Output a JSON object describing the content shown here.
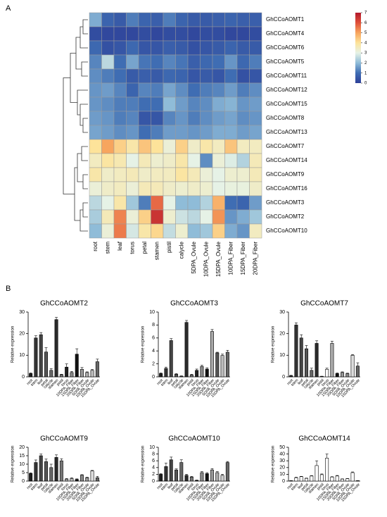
{
  "panel_labels": [
    "A",
    "B"
  ],
  "chart_data": [
    {
      "type": "heatmap",
      "rows": [
        "GhCCoAOMT1",
        "GhCCoAOMT4",
        "GhCCoAOMT6",
        "GhCCoAOMT5",
        "GhCCoAOMT11",
        "GhCCoAOMT12",
        "GhCCoAOMT15",
        "GhCCoAOMT8",
        "GhCCoAOMT13",
        "GhCCoAOMT7",
        "GhCCoAOMT14",
        "GhCCoAOMT9",
        "GhCCoAOMT16",
        "GhCCoAOMT3",
        "GhCCoAOMT2",
        "GhCCoAOMT10"
      ],
      "columns": [
        "root",
        "stem",
        "leaf",
        "torus",
        "petal",
        "stamen",
        "pistil",
        "calycle",
        "5DPA_Ovule",
        "10DPA_Ovule",
        "15DPA_Ovule",
        "10DPA_Fiber",
        "15DPA_Fiber",
        "20DPA_Fiber"
      ],
      "values": [
        [
          1.8,
          0.8,
          0.6,
          1.2,
          0.8,
          0.7,
          1.2,
          0.8,
          0.6,
          0.6,
          0.7,
          0.8,
          0.7,
          0.7
        ],
        [
          0.3,
          0.2,
          0.2,
          0.2,
          0.3,
          0.2,
          0.3,
          0.3,
          0.2,
          0.3,
          0.3,
          0.2,
          0.2,
          0.3
        ],
        [
          0.9,
          0.4,
          0.5,
          0.9,
          0.5,
          0.5,
          0.7,
          0.6,
          0.4,
          0.5,
          0.6,
          0.8,
          0.6,
          0.6
        ],
        [
          1.3,
          2.5,
          1.0,
          1.7,
          1.1,
          1.0,
          1.3,
          1.1,
          0.7,
          0.9,
          1.0,
          1.5,
          0.9,
          1.2
        ],
        [
          1.4,
          1.2,
          1.0,
          0.6,
          0.7,
          0.6,
          0.9,
          0.8,
          0.5,
          0.6,
          0.5,
          1.0,
          0.4,
          0.5
        ],
        [
          1.5,
          1.6,
          1.3,
          0.8,
          1.3,
          1.2,
          1.7,
          1.4,
          1.0,
          1.2,
          1.3,
          1.6,
          1.2,
          1.4
        ],
        [
          1.5,
          1.4,
          1.2,
          1.2,
          1.0,
          1.0,
          2.0,
          1.6,
          1.3,
          1.4,
          1.8,
          1.9,
          1.5,
          1.6
        ],
        [
          1.6,
          1.5,
          1.2,
          1.3,
          0.5,
          0.5,
          1.3,
          1.5,
          1.2,
          1.4,
          1.6,
          1.7,
          1.4,
          1.5
        ],
        [
          1.7,
          1.6,
          1.4,
          1.5,
          1.0,
          1.2,
          1.6,
          1.6,
          1.5,
          1.6,
          1.8,
          1.8,
          1.6,
          1.7
        ],
        [
          4.0,
          5.0,
          4.3,
          3.8,
          4.5,
          4.0,
          3.2,
          4.3,
          3.4,
          3.8,
          3.5,
          4.5,
          3.5,
          3.5
        ],
        [
          3.5,
          3.9,
          3.7,
          3.0,
          3.6,
          3.3,
          3.4,
          3.8,
          3.0,
          1.4,
          3.2,
          2.9,
          2.4,
          3.6
        ],
        [
          3.8,
          3.4,
          3.5,
          3.6,
          3.4,
          3.5,
          3.5,
          3.9,
          3.6,
          3.2,
          3.0,
          3.3,
          3.3,
          3.6
        ],
        [
          3.2,
          3.4,
          3.5,
          3.2,
          3.6,
          3.6,
          3.4,
          3.3,
          3.4,
          3.3,
          3.0,
          3.1,
          3.1,
          3.4
        ],
        [
          2.5,
          3.0,
          3.8,
          2.2,
          1.2,
          5.7,
          3.0,
          2.0,
          2.0,
          2.4,
          4.8,
          1.0,
          0.8,
          1.6
        ],
        [
          2.3,
          3.6,
          5.4,
          3.2,
          4.3,
          6.5,
          3.3,
          2.7,
          2.5,
          3.0,
          5.2,
          1.5,
          1.8,
          2.2
        ],
        [
          2.0,
          3.2,
          5.5,
          2.8,
          3.8,
          4.2,
          2.6,
          3.3,
          2.0,
          2.2,
          4.3,
          1.8,
          1.5,
          3.5
        ]
      ],
      "vlim": [
        0,
        7
      ],
      "colorbar_ticks": [
        0,
        1,
        2,
        3,
        4,
        5,
        6,
        7
      ],
      "colorbar_colors": [
        "#2d3f98",
        "#3f6db3",
        "#8fbcd8",
        "#e6f2e6",
        "#fde39a",
        "#f7a55e",
        "#e0503a",
        "#b2182b"
      ]
    },
    {
      "type": "bar",
      "title": "GhCCoAOMT2",
      "ylabel": "Relative expression",
      "categories": [
        "root",
        "stem",
        "leaf",
        "petal",
        "calycle",
        "stamen",
        "pistil",
        "torus",
        "10DPA_Fiber",
        "15DPA_Fiber",
        "20DPA_Fiber",
        "5DPA_Ovule",
        "10DPA_Ovule",
        "15DPA_Ovule"
      ],
      "values": [
        1.5,
        18,
        19.5,
        11.5,
        3,
        26.5,
        1,
        4.5,
        2,
        10.5,
        3.5,
        2,
        3,
        7
      ],
      "errors": [
        0.3,
        1,
        1,
        2,
        0.8,
        1,
        0.2,
        1.5,
        0.5,
        2.5,
        0.8,
        0.3,
        0.4,
        1.2
      ],
      "colors": [
        "#1e1e1e",
        "#333333",
        "#444444",
        "#555555",
        "#666666",
        "#2a2a2a",
        "#777777",
        "#222222",
        "#888888",
        "#111111",
        "#999999",
        "#aaaaaa",
        "#bbbbbb",
        "#666666"
      ],
      "edgecolor": "#000000",
      "ylim": [
        0,
        30
      ],
      "yticks": [
        0,
        10,
        20,
        30
      ]
    },
    {
      "type": "bar",
      "title": "GhCCoAOMT3",
      "ylabel": "Relative expression",
      "categories": [
        "root",
        "stem",
        "leaf",
        "petal",
        "calycle",
        "stamen",
        "pistil",
        "torus",
        "10DPA_Fiber",
        "15DPA_Fiber",
        "20DPA_Fiber",
        "5DPA_Ovule",
        "10DPA_Ovule",
        "15DPA_Ovule"
      ],
      "values": [
        0.5,
        1.3,
        5.6,
        0.4,
        0.1,
        8.4,
        0.3,
        1.0,
        1.6,
        1.2,
        7.0,
        3.7,
        3.3,
        3.8
      ],
      "errors": [
        0.1,
        0.2,
        0.3,
        0.1,
        0.05,
        0.3,
        0.1,
        0.2,
        0.2,
        0.2,
        0.3,
        0.1,
        0.2,
        0.3
      ],
      "colors": [
        "#1e1e1e",
        "#333333",
        "#444444",
        "#555555",
        "#666666",
        "#2a2a2a",
        "#777777",
        "#222222",
        "#888888",
        "#111111",
        "#aaaaaa",
        "#555555",
        "#bbbbbb",
        "#666666"
      ],
      "edgecolor": "#000000",
      "ylim": [
        0,
        10
      ],
      "yticks": [
        0,
        2,
        4,
        6,
        8,
        10
      ]
    },
    {
      "type": "bar",
      "title": "GhCCoAOMT7",
      "ylabel": "Relative expression",
      "categories": [
        "root",
        "stem",
        "leaf",
        "petal",
        "calycle",
        "stamen",
        "pistil",
        "torus",
        "10DPA_Fiber",
        "15DPA_Fiber",
        "20DPA_Fiber",
        "5DPA_Ovule",
        "10DPA_Ovule",
        "15DPA_Ovule"
      ],
      "values": [
        0.5,
        24,
        18,
        13,
        3,
        15.5,
        0.2,
        3.5,
        15.5,
        1.5,
        2,
        1.5,
        10,
        5
      ],
      "errors": [
        0.2,
        1,
        1.5,
        1.5,
        1,
        1.2,
        0.1,
        0.5,
        1,
        0.3,
        0.3,
        0.2,
        0.3,
        1.5
      ],
      "colors": [
        "#1e1e1e",
        "#333333",
        "#444444",
        "#555555",
        "#666666",
        "#2a2a2a",
        "#777777",
        "#ffffff",
        "#aaaaaa",
        "#111111",
        "#999999",
        "#888888",
        "#dddddd",
        "#666666"
      ],
      "edgecolor": "#000000",
      "ylim": [
        0,
        30
      ],
      "yticks": [
        0,
        10,
        20,
        30
      ]
    },
    {
      "type": "bar",
      "title": "GhCCoAOMT9",
      "ylabel": "Relative expression",
      "categories": [
        "root",
        "stem",
        "leaf",
        "petal",
        "calycle",
        "stamen",
        "pistil",
        "torus",
        "10DPA_Fiber",
        "15DPA_Fiber",
        "20DPA_Fiber",
        "5DPA_Ovule",
        "10DPA_Ovule",
        "15DPA_Ovule"
      ],
      "values": [
        4.5,
        11,
        15,
        11.5,
        8,
        14,
        12,
        1.2,
        1.5,
        1,
        3.5,
        2,
        6,
        2
      ],
      "errors": [
        0.4,
        1.5,
        1,
        1.5,
        2,
        1.5,
        1.2,
        0.3,
        0.5,
        0.3,
        0.3,
        0.3,
        0.3,
        0.8
      ],
      "colors": [
        "#1e1e1e",
        "#333333",
        "#444444",
        "#555555",
        "#666666",
        "#2a2a2a",
        "#777777",
        "#aaaaaa",
        "#bbbbbb",
        "#111111",
        "#888888",
        "#999999",
        "#dddddd",
        "#666666"
      ],
      "edgecolor": "#000000",
      "ylim": [
        0,
        20
      ],
      "yticks": [
        0,
        5,
        10,
        15,
        20
      ]
    },
    {
      "type": "bar",
      "title": "GhCCoAOMT10",
      "ylabel": "Relative expression",
      "categories": [
        "root",
        "stem",
        "leaf",
        "petal",
        "calycle",
        "stamen",
        "pistil",
        "torus",
        "10DPA_Fiber",
        "15DPA_Fiber",
        "20DPA_Fiber",
        "5DPA_Ovule",
        "10DPA_Ovule",
        "15DPA_Ovule"
      ],
      "values": [
        2,
        4.3,
        6.3,
        3.3,
        5.5,
        1.7,
        1.2,
        0.2,
        2.5,
        2.2,
        3.3,
        2.5,
        1.7,
        5.5
      ],
      "errors": [
        0.2,
        1,
        0.8,
        0.3,
        0.8,
        0.3,
        0.2,
        0.1,
        0.3,
        0.3,
        0.4,
        0.3,
        0.3,
        0.3
      ],
      "colors": [
        "#1e1e1e",
        "#333333",
        "#444444",
        "#555555",
        "#666666",
        "#2a2a2a",
        "#777777",
        "#222222",
        "#888888",
        "#111111",
        "#999999",
        "#aaaaaa",
        "#cccccc",
        "#666666"
      ],
      "edgecolor": "#000000",
      "ylim": [
        0,
        10
      ],
      "yticks": [
        0,
        2,
        4,
        6,
        8,
        10
      ]
    },
    {
      "type": "bar",
      "title": "GhCCoAOMT14",
      "ylabel": "Relative expression",
      "categories": [
        "root",
        "stem",
        "leaf",
        "petal",
        "calycle",
        "stamen",
        "pistil",
        "torus",
        "10DPA_Fiber",
        "15DPA_Fiber",
        "20DPA_Fiber",
        "5DPA_Ovule",
        "10DPA_Ovule",
        "15DPA_Ovule"
      ],
      "values": [
        0.5,
        5,
        6.5,
        4,
        7.5,
        23,
        9.5,
        34,
        6,
        7.5,
        3,
        3.5,
        12.5,
        0.5
      ],
      "errors": [
        0.2,
        0.8,
        0.5,
        0.4,
        0.5,
        7,
        1,
        6,
        0.5,
        0.8,
        0.3,
        0.3,
        1,
        0.2
      ],
      "colors": [
        "#ffffff",
        "#ffffff",
        "#ffffff",
        "#ffffff",
        "#ffffff",
        "#ffffff",
        "#ffffff",
        "#ffffff",
        "#ffffff",
        "#ffffff",
        "#ffffff",
        "#ffffff",
        "#ffffff",
        "#ffffff"
      ],
      "edgecolor": "#000000",
      "ylim": [
        0,
        50
      ],
      "yticks": [
        0,
        10,
        20,
        30,
        40,
        50
      ]
    }
  ]
}
